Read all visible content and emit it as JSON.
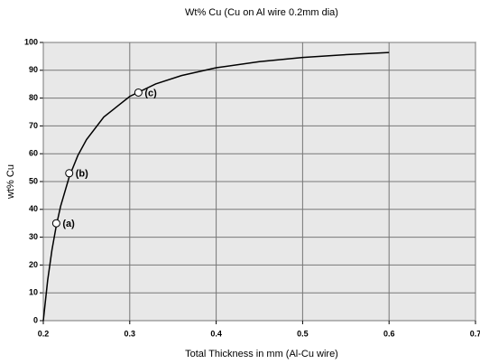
{
  "chart_data": {
    "type": "line",
    "title": "Wt% Cu (Cu on Al wire 0.2mm dia)",
    "x_label": "Total Thickness in mm (Al-Cu wire)",
    "y_label": "wt% Cu",
    "xlim": [
      0.2,
      0.7
    ],
    "xticks": [
      0.2,
      0.3,
      0.4,
      0.5,
      0.6,
      0.7
    ],
    "ylim": [
      0,
      100
    ],
    "yticks": [
      0,
      10,
      20,
      30,
      40,
      50,
      60,
      70,
      80,
      90,
      100
    ],
    "grid": true,
    "series": [
      {
        "color": "#000000",
        "x": [
          0.2,
          0.205,
          0.21,
          0.215,
          0.22,
          0.23,
          0.24,
          0.25,
          0.27,
          0.3,
          0.33,
          0.36,
          0.4,
          0.45,
          0.5,
          0.55,
          0.6
        ],
        "values": [
          0,
          14.4,
          25.4,
          34.1,
          41.1,
          51.7,
          59.4,
          65.1,
          73.2,
          80.6,
          85.1,
          88.1,
          90.9,
          93.1,
          94.6,
          95.6,
          96.4
        ]
      }
    ],
    "points": {
      "x": [
        0.215,
        0.23,
        0.31
      ],
      "values": [
        35,
        53,
        82
      ],
      "labels": [
        "(a)",
        "(b)",
        "(c)"
      ]
    }
  }
}
